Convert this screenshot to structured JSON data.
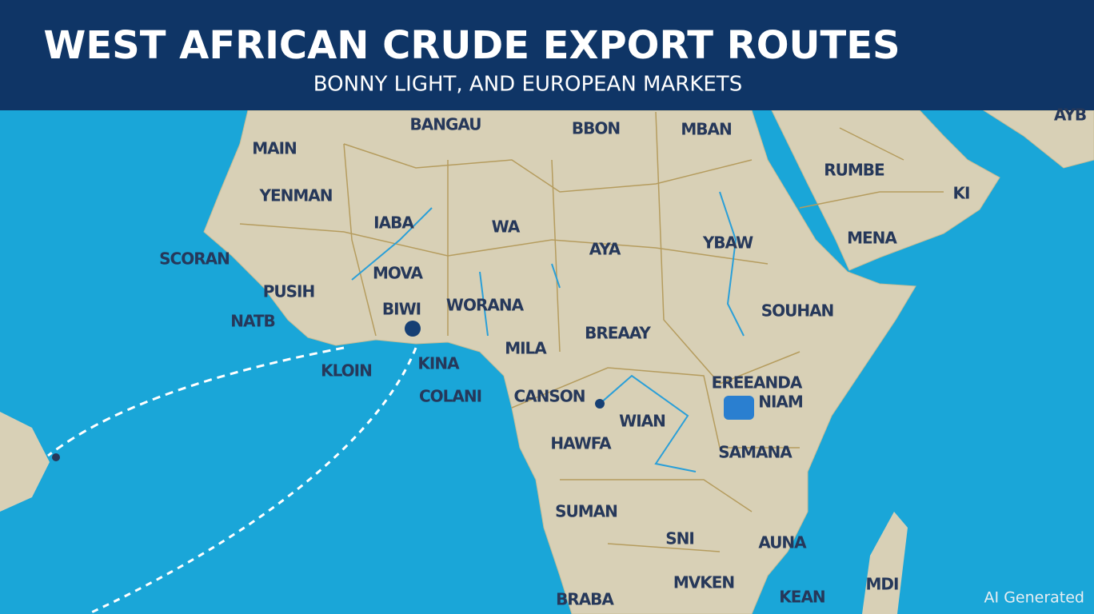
{
  "header": {
    "title": "WEST AFRICAN CRUDE EXPORT ROUTES",
    "subtitle": "BONNY LIGHT, AND EUROPEAN MARKETS"
  },
  "labels": [
    "BANGAU",
    "BBON",
    "MBAN",
    "AYB",
    "MAIN",
    "RUMBE",
    "KI",
    "YENMAN",
    "IABA",
    "WA",
    "MENA",
    "AYA",
    "YBAW",
    "SCORAN",
    "MOVA",
    "PUSIH",
    "BIWI",
    "WORANA",
    "SOUHAN",
    "NATB",
    "BREAAY",
    "MILA",
    "KLOIN",
    "KINA",
    "COLANI",
    "CANSON",
    "EREEANDA",
    "NIAM",
    "WIAN",
    "HAWFA",
    "SAMANA",
    "SUMAN",
    "SNI",
    "AUNA",
    "MVKEN",
    "BRABA",
    "KEAN",
    "MDI"
  ],
  "watermark": "AI Generated"
}
